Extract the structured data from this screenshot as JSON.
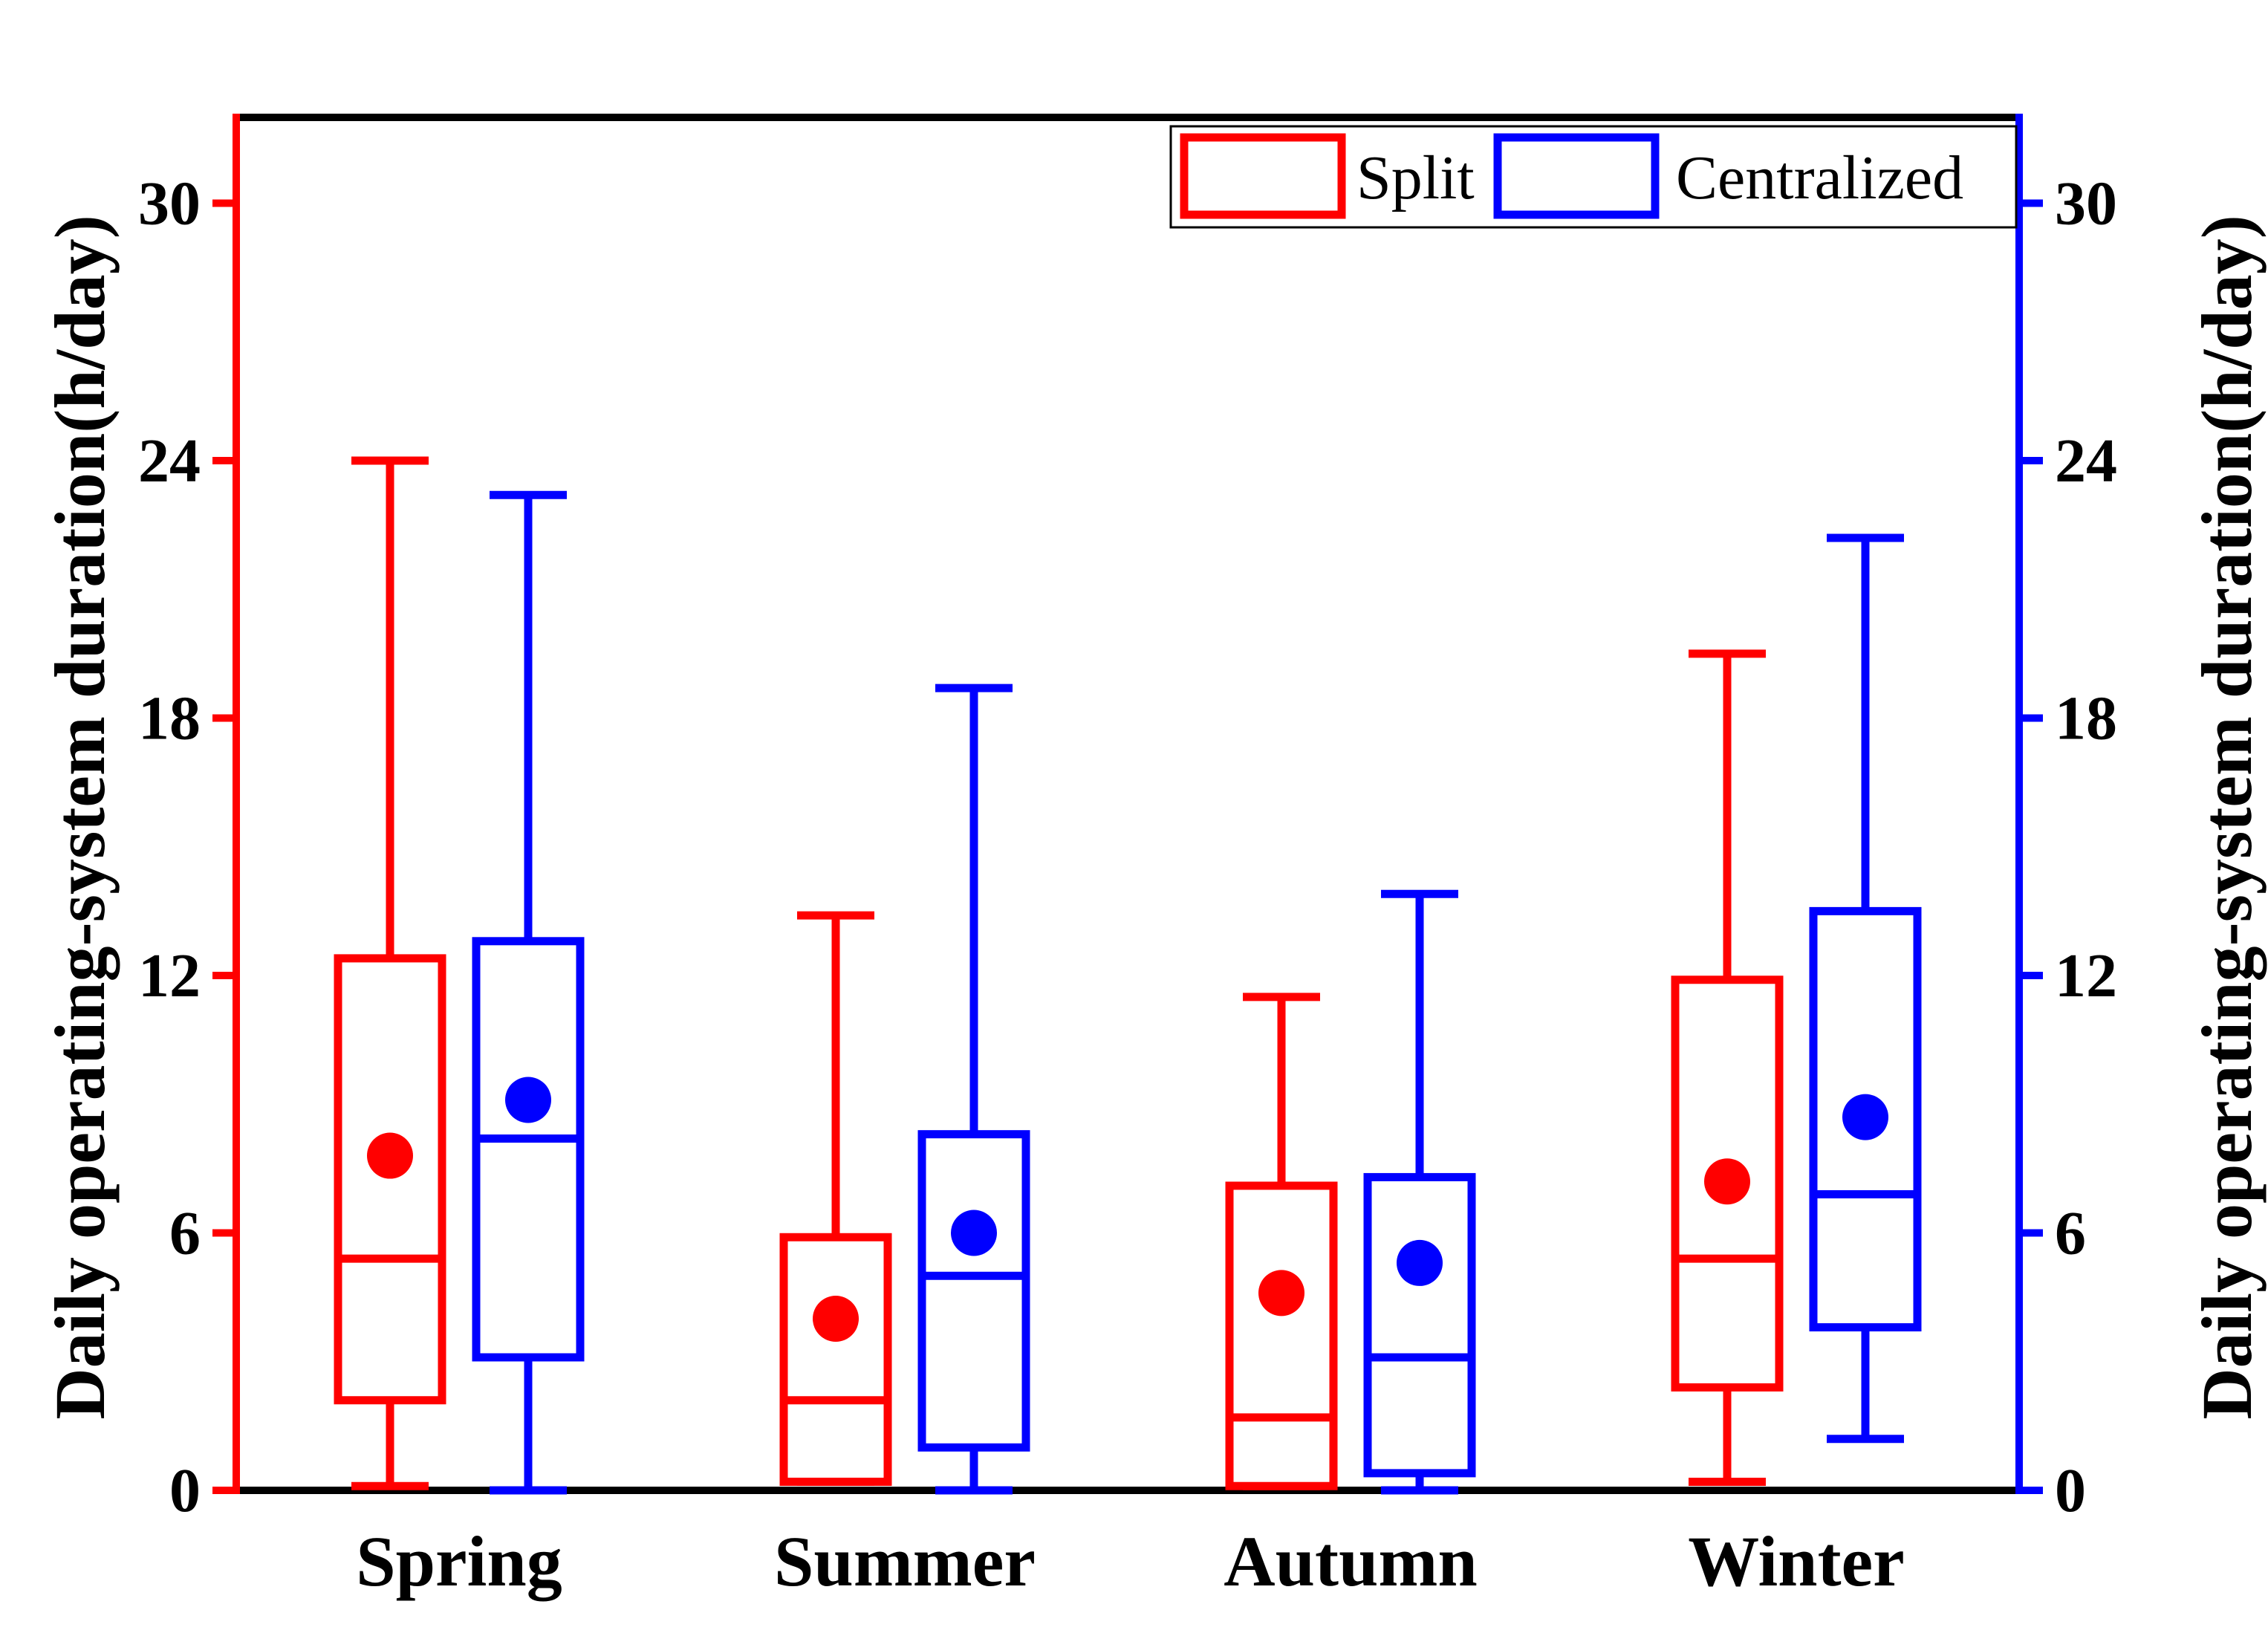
{
  "chart_data": {
    "type": "box",
    "categories": [
      "Spring",
      "Summer",
      "Autumn",
      "Winter"
    ],
    "ylabel_left": "Daily operating-system duration(h/day)",
    "ylabel_right": "Daily operating-system duration(h/day)",
    "ylim": [
      0,
      32
    ],
    "yticks": [
      "0",
      "6",
      "12",
      "18",
      "24",
      "30"
    ],
    "ytick_values": [
      0,
      6,
      12,
      18,
      24,
      30
    ],
    "legend_position": "top-right",
    "grid": false,
    "colors": {
      "left_axis": "#ff0000",
      "right_axis": "#0000ff",
      "frame": "#000000"
    },
    "series": [
      {
        "name": "Split",
        "color": "#ff0000",
        "boxes": [
          {
            "whisker_low": 0.1,
            "q1": 2.1,
            "median": 5.4,
            "q3": 12.4,
            "whisker_high": 24.0,
            "mean": 7.8
          },
          {
            "whisker_low": 0.2,
            "q1": 0.2,
            "median": 2.1,
            "q3": 5.9,
            "whisker_high": 13.4,
            "mean": 4.0
          },
          {
            "whisker_low": 0.1,
            "q1": 0.1,
            "median": 1.7,
            "q3": 7.1,
            "whisker_high": 11.5,
            "mean": 4.6
          },
          {
            "whisker_low": 0.2,
            "q1": 2.4,
            "median": 5.4,
            "q3": 11.9,
            "whisker_high": 19.5,
            "mean": 7.2
          }
        ]
      },
      {
        "name": "Centralized",
        "color": "#0000ff",
        "boxes": [
          {
            "whisker_low": 0.0,
            "q1": 3.1,
            "median": 8.2,
            "q3": 12.8,
            "whisker_high": 23.2,
            "mean": 9.1
          },
          {
            "whisker_low": 0.0,
            "q1": 1.0,
            "median": 5.0,
            "q3": 8.3,
            "whisker_high": 18.7,
            "mean": 6.0
          },
          {
            "whisker_low": 0.0,
            "q1": 0.4,
            "median": 3.1,
            "q3": 7.3,
            "whisker_high": 13.9,
            "mean": 5.3
          },
          {
            "whisker_low": 1.2,
            "q1": 3.8,
            "median": 6.9,
            "q3": 13.5,
            "whisker_high": 22.2,
            "mean": 8.7
          }
        ]
      }
    ]
  }
}
